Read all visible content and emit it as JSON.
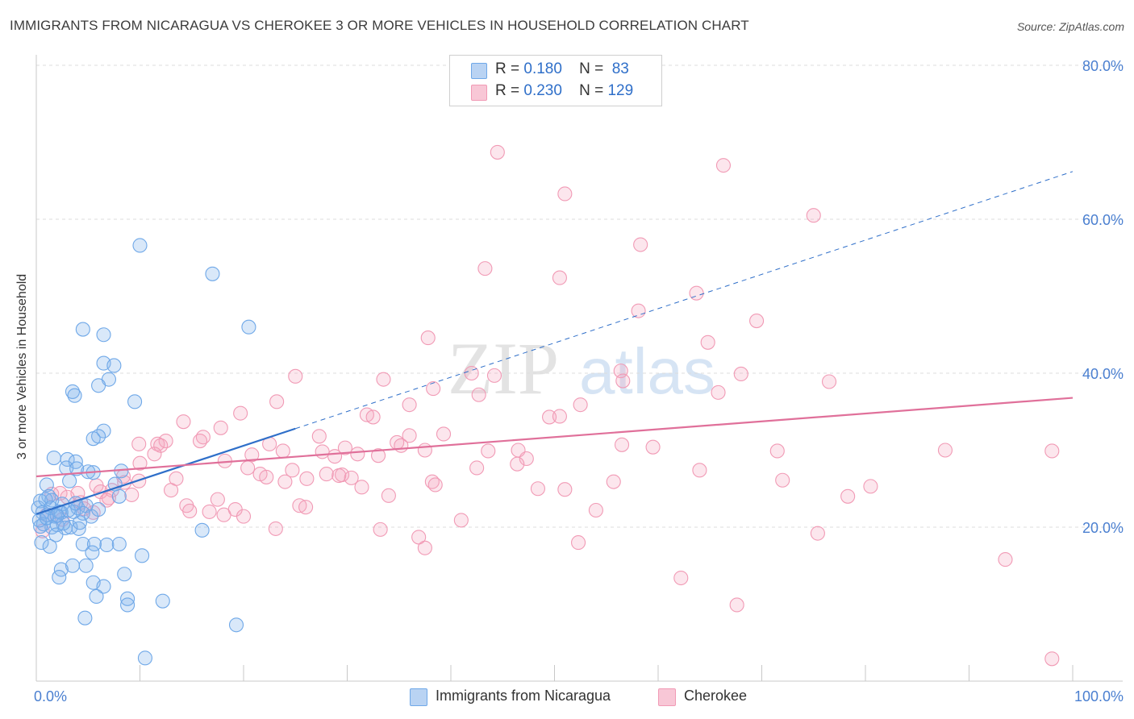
{
  "title": "IMMIGRANTS FROM NICARAGUA VS CHEROKEE 3 OR MORE VEHICLES IN HOUSEHOLD CORRELATION CHART",
  "source": "Source: ZipAtlas.com",
  "watermark": {
    "zip": "ZIP",
    "atlas": "atlas"
  },
  "colors": {
    "blue": "#6fa8e8",
    "blue_line": "#2f6fc9",
    "pink": "#f19ab5",
    "pink_line": "#e0709a",
    "tick_text": "#4a7fd0"
  },
  "legend": {
    "rows": [
      {
        "r_label": "R =",
        "r_value": "0.180",
        "n_label": "N =",
        "n_value": "83"
      },
      {
        "r_label": "R =",
        "r_value": "0.230",
        "n_label": "N =",
        "n_value": "129"
      }
    ]
  },
  "bottom_legend": [
    "Immigrants from Nicaragua",
    "Cherokee"
  ],
  "chart_data": {
    "type": "scatter",
    "title": "IMMIGRANTS FROM NICARAGUA VS CHEROKEE 3 OR MORE VEHICLES IN HOUSEHOLD CORRELATION CHART",
    "xlabel": "",
    "ylabel": "3 or more Vehicles in Household",
    "xlim": [
      0,
      100
    ],
    "ylim": [
      0,
      80
    ],
    "x_tick_labels": [
      "0.0%",
      "100.0%"
    ],
    "y_tick_labels": [
      "20.0%",
      "40.0%",
      "60.0%",
      "80.0%"
    ],
    "y_ticks": [
      20,
      40,
      60,
      80
    ],
    "grid": true,
    "series": [
      {
        "name": "Immigrants from Nicaragua",
        "color": "#6fa8e8",
        "trend": {
          "x": [
            0,
            25
          ],
          "y": [
            21.7,
            32.8
          ],
          "dashed_extension_to": [
            100,
            66.2
          ]
        },
        "points": [
          [
            10,
            56.6
          ],
          [
            17,
            52.9
          ],
          [
            4.5,
            45.7
          ],
          [
            6.5,
            45.0
          ],
          [
            20.5,
            46.0
          ],
          [
            6.5,
            41.3
          ],
          [
            7.5,
            41.0
          ],
          [
            7,
            39.2
          ],
          [
            6,
            38.4
          ],
          [
            3.5,
            37.6
          ],
          [
            3.7,
            37.1
          ],
          [
            9.5,
            36.3
          ],
          [
            6.5,
            32.5
          ],
          [
            6,
            31.8
          ],
          [
            5.5,
            31.5
          ],
          [
            1.7,
            29.0
          ],
          [
            3,
            28.8
          ],
          [
            3.8,
            28.5
          ],
          [
            2.9,
            27.7
          ],
          [
            3.9,
            27.6
          ],
          [
            5.5,
            27.1
          ],
          [
            8.2,
            27.3
          ],
          [
            1,
            25.5
          ],
          [
            3.2,
            26.0
          ],
          [
            7.6,
            25.6
          ],
          [
            8,
            24.0
          ],
          [
            1.2,
            24.0
          ],
          [
            0.4,
            23.4
          ],
          [
            1.5,
            23.5
          ],
          [
            2.5,
            23.0
          ],
          [
            4,
            22.5
          ],
          [
            4.8,
            22.8
          ],
          [
            0.2,
            22.5
          ],
          [
            0.6,
            21.9
          ],
          [
            1.1,
            21.6
          ],
          [
            1.8,
            21.4
          ],
          [
            2.4,
            21.9
          ],
          [
            3.6,
            22.0
          ],
          [
            4.5,
            21.8
          ],
          [
            5.3,
            21.4
          ],
          [
            0.7,
            20.4
          ],
          [
            1.5,
            20.0
          ],
          [
            2.0,
            20.3
          ],
          [
            2.8,
            19.9
          ],
          [
            3.3,
            20.0
          ],
          [
            4.1,
            19.8
          ],
          [
            0.4,
            20.1
          ],
          [
            1.9,
            19.0
          ],
          [
            0.5,
            18.0
          ],
          [
            1.3,
            17.5
          ],
          [
            4.5,
            17.8
          ],
          [
            5.6,
            17.8
          ],
          [
            6.8,
            17.7
          ],
          [
            8,
            17.8
          ],
          [
            5.4,
            16.7
          ],
          [
            10.2,
            16.3
          ],
          [
            3.5,
            15.0
          ],
          [
            4.8,
            15.0
          ],
          [
            2.4,
            14.5
          ],
          [
            2.2,
            13.5
          ],
          [
            8.5,
            13.9
          ],
          [
            5.5,
            12.8
          ],
          [
            6.5,
            12.3
          ],
          [
            5.8,
            11.0
          ],
          [
            8.8,
            10.7
          ],
          [
            8.8,
            9.9
          ],
          [
            12.2,
            10.4
          ],
          [
            4.7,
            8.2
          ],
          [
            19.3,
            7.3
          ],
          [
            10.5,
            3.0
          ],
          [
            16,
            19.6
          ],
          [
            0.9,
            23.6
          ],
          [
            2.2,
            22.0
          ],
          [
            3.1,
            22.2
          ],
          [
            1.4,
            22.5
          ],
          [
            0.3,
            20.9
          ],
          [
            2.6,
            20.5
          ],
          [
            4.2,
            20.6
          ],
          [
            1.0,
            21.2
          ],
          [
            3.8,
            23.1
          ],
          [
            5.0,
            27.2
          ],
          [
            2.0,
            21.5
          ],
          [
            6.0,
            22.3
          ]
        ]
      },
      {
        "name": "Cherokee",
        "color": "#f19ab5",
        "trend": {
          "x": [
            0,
            100
          ],
          "y": [
            26.6,
            36.8
          ]
        },
        "points": [
          [
            44.5,
            68.7
          ],
          [
            66.3,
            67.0
          ],
          [
            51.0,
            63.3
          ],
          [
            75.0,
            60.5
          ],
          [
            58.3,
            56.7
          ],
          [
            43.3,
            53.6
          ],
          [
            50.5,
            52.4
          ],
          [
            63.7,
            50.4
          ],
          [
            58.1,
            48.1
          ],
          [
            69.5,
            46.8
          ],
          [
            37.8,
            44.6
          ],
          [
            64.8,
            44.0
          ],
          [
            56.4,
            40.3
          ],
          [
            42.0,
            40.0
          ],
          [
            68.0,
            39.9
          ],
          [
            44.2,
            39.7
          ],
          [
            25.0,
            39.6
          ],
          [
            33.5,
            39.2
          ],
          [
            56.6,
            39.0
          ],
          [
            76.5,
            38.9
          ],
          [
            38.3,
            38.0
          ],
          [
            65.8,
            37.5
          ],
          [
            42.7,
            37.2
          ],
          [
            23.2,
            36.3
          ],
          [
            36.0,
            35.9
          ],
          [
            52.5,
            35.9
          ],
          [
            19.7,
            34.8
          ],
          [
            31.9,
            34.6
          ],
          [
            32.5,
            34.3
          ],
          [
            49.5,
            34.3
          ],
          [
            50.5,
            34.4
          ],
          [
            14.2,
            33.7
          ],
          [
            17.8,
            32.9
          ],
          [
            39.3,
            32.1
          ],
          [
            36.0,
            31.9
          ],
          [
            27.3,
            31.8
          ],
          [
            16.1,
            31.7
          ],
          [
            12.5,
            31.2
          ],
          [
            11.7,
            30.8
          ],
          [
            9.9,
            30.8
          ],
          [
            15.8,
            31.2
          ],
          [
            12.0,
            30.6
          ],
          [
            22.5,
            30.8
          ],
          [
            34.8,
            31.0
          ],
          [
            56.5,
            30.7
          ],
          [
            59.5,
            30.4
          ],
          [
            29.8,
            30.3
          ],
          [
            35.2,
            30.6
          ],
          [
            23.8,
            29.9
          ],
          [
            27.6,
            29.8
          ],
          [
            31.0,
            29.5
          ],
          [
            46.5,
            30.0
          ],
          [
            37.5,
            30.0
          ],
          [
            43.6,
            29.9
          ],
          [
            11.4,
            29.5
          ],
          [
            71.5,
            29.9
          ],
          [
            87.7,
            30.0
          ],
          [
            98.0,
            29.9
          ],
          [
            20.8,
            29.4
          ],
          [
            28.8,
            29.2
          ],
          [
            47.3,
            28.9
          ],
          [
            18.2,
            28.6
          ],
          [
            46.4,
            28.2
          ],
          [
            10.0,
            28.3
          ],
          [
            20.4,
            27.7
          ],
          [
            42.5,
            27.7
          ],
          [
            64.0,
            27.4
          ],
          [
            21.6,
            26.9
          ],
          [
            28.0,
            26.9
          ],
          [
            29.5,
            26.8
          ],
          [
            22.2,
            26.5
          ],
          [
            26.1,
            26.3
          ],
          [
            29.2,
            26.7
          ],
          [
            13.5,
            26.3
          ],
          [
            30.4,
            26.4
          ],
          [
            9.9,
            26.0
          ],
          [
            24.0,
            25.9
          ],
          [
            38.2,
            25.9
          ],
          [
            55.7,
            25.9
          ],
          [
            72.0,
            26.1
          ],
          [
            38.5,
            25.5
          ],
          [
            31.4,
            25.2
          ],
          [
            80.5,
            25.3
          ],
          [
            5.8,
            25.4
          ],
          [
            8.4,
            26.6
          ],
          [
            48.4,
            25.0
          ],
          [
            51.0,
            24.9
          ],
          [
            7.3,
            24.8
          ],
          [
            6.2,
            24.6
          ],
          [
            4.0,
            24.4
          ],
          [
            2.3,
            24.4
          ],
          [
            1.5,
            24.3
          ],
          [
            34.0,
            24.1
          ],
          [
            9.2,
            24.2
          ],
          [
            6.8,
            23.5
          ],
          [
            17.5,
            23.6
          ],
          [
            4.3,
            23.2
          ],
          [
            14.5,
            22.8
          ],
          [
            14.8,
            22.1
          ],
          [
            25.4,
            22.8
          ],
          [
            26.0,
            22.6
          ],
          [
            19.2,
            22.3
          ],
          [
            54.0,
            22.2
          ],
          [
            16.7,
            22.0
          ],
          [
            5.5,
            21.9
          ],
          [
            18.1,
            21.6
          ],
          [
            20.0,
            21.4
          ],
          [
            41.0,
            20.9
          ],
          [
            1.0,
            21.6
          ],
          [
            23.1,
            19.8
          ],
          [
            33.2,
            19.7
          ],
          [
            36.9,
            18.7
          ],
          [
            78.3,
            24.0
          ],
          [
            75.4,
            19.2
          ],
          [
            52.3,
            18.0
          ],
          [
            37.5,
            17.3
          ],
          [
            93.5,
            15.8
          ],
          [
            62.2,
            13.4
          ],
          [
            67.6,
            9.9
          ],
          [
            98.0,
            2.9
          ],
          [
            2.5,
            21.0
          ],
          [
            0.6,
            19.5
          ],
          [
            3.0,
            23.9
          ],
          [
            4.6,
            22.4
          ],
          [
            7.0,
            23.8
          ],
          [
            8.5,
            25.8
          ],
          [
            13.0,
            24.8
          ],
          [
            24.7,
            27.4
          ],
          [
            33.0,
            29.3
          ]
        ]
      }
    ]
  }
}
